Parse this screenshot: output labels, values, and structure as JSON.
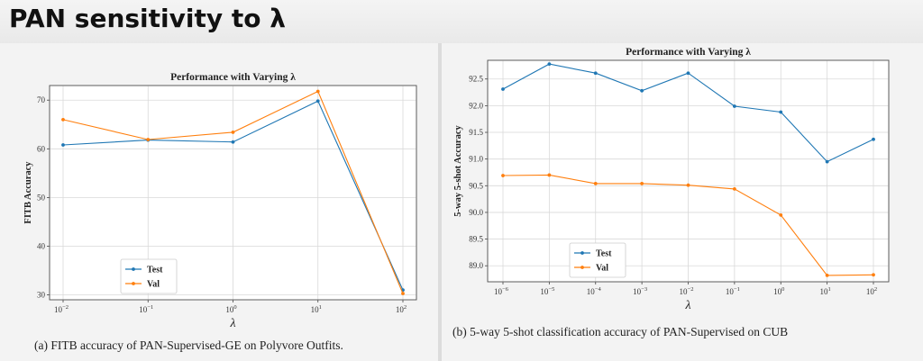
{
  "slide": {
    "title": "PAN sensitivity to λ"
  },
  "captions": {
    "left": "(a) FITB accuracy of PAN-Supervised-GE on Polyvore Outfits.",
    "right": "(b) 5-way 5-shot classification accuracy of PAN-Supervised on CUB"
  },
  "colors": {
    "test": "#1f77b4",
    "val": "#ff7f0e",
    "grid": "#d9d9d9"
  },
  "chart_data": [
    {
      "type": "line",
      "title": "Performance with Varying λ",
      "xlabel": "λ",
      "ylabel": "FITB Accuracy",
      "x": [
        -2,
        -1,
        0,
        1,
        2
      ],
      "x_ticks": [
        {
          "base": "10",
          "exp": "−2"
        },
        {
          "base": "10",
          "exp": "−1"
        },
        {
          "base": "10",
          "exp": "0"
        },
        {
          "base": "10",
          "exp": "1"
        },
        {
          "base": "10",
          "exp": "2"
        }
      ],
      "y_ticks": [
        30,
        40,
        50,
        60,
        70
      ],
      "ylim": [
        29,
        73
      ],
      "grid": true,
      "legend_position": "bottom-left",
      "series": [
        {
          "name": "Test",
          "values": [
            60.8,
            61.8,
            61.4,
            69.8,
            31.0
          ]
        },
        {
          "name": "Val",
          "values": [
            66.0,
            61.9,
            63.4,
            71.8,
            30.3
          ]
        }
      ]
    },
    {
      "type": "line",
      "title": "Performance with Varying λ",
      "xlabel": "λ",
      "ylabel": "5-way 5-shot Accuracy",
      "x": [
        -6,
        -5,
        -4,
        -3,
        -2,
        -1,
        0,
        1,
        2
      ],
      "x_ticks": [
        {
          "base": "10",
          "exp": "−6"
        },
        {
          "base": "10",
          "exp": "−5"
        },
        {
          "base": "10",
          "exp": "−4"
        },
        {
          "base": "10",
          "exp": "−3"
        },
        {
          "base": "10",
          "exp": "−2"
        },
        {
          "base": "10",
          "exp": "−1"
        },
        {
          "base": "10",
          "exp": "0"
        },
        {
          "base": "10",
          "exp": "1"
        },
        {
          "base": "10",
          "exp": "2"
        }
      ],
      "y_ticks": [
        "89.0",
        "89.5",
        "90.0",
        "90.5",
        "91.0",
        "91.5",
        "92.0",
        "92.5"
      ],
      "ylim": [
        88.7,
        92.85
      ],
      "grid": true,
      "legend_position": "bottom-left",
      "series": [
        {
          "name": "Test",
          "values": [
            92.31,
            92.78,
            92.61,
            92.28,
            92.61,
            91.99,
            91.88,
            90.95,
            91.37
          ]
        },
        {
          "name": "Val",
          "values": [
            90.69,
            90.7,
            90.54,
            90.54,
            90.51,
            90.44,
            89.95,
            88.82,
            88.83
          ]
        }
      ]
    }
  ]
}
